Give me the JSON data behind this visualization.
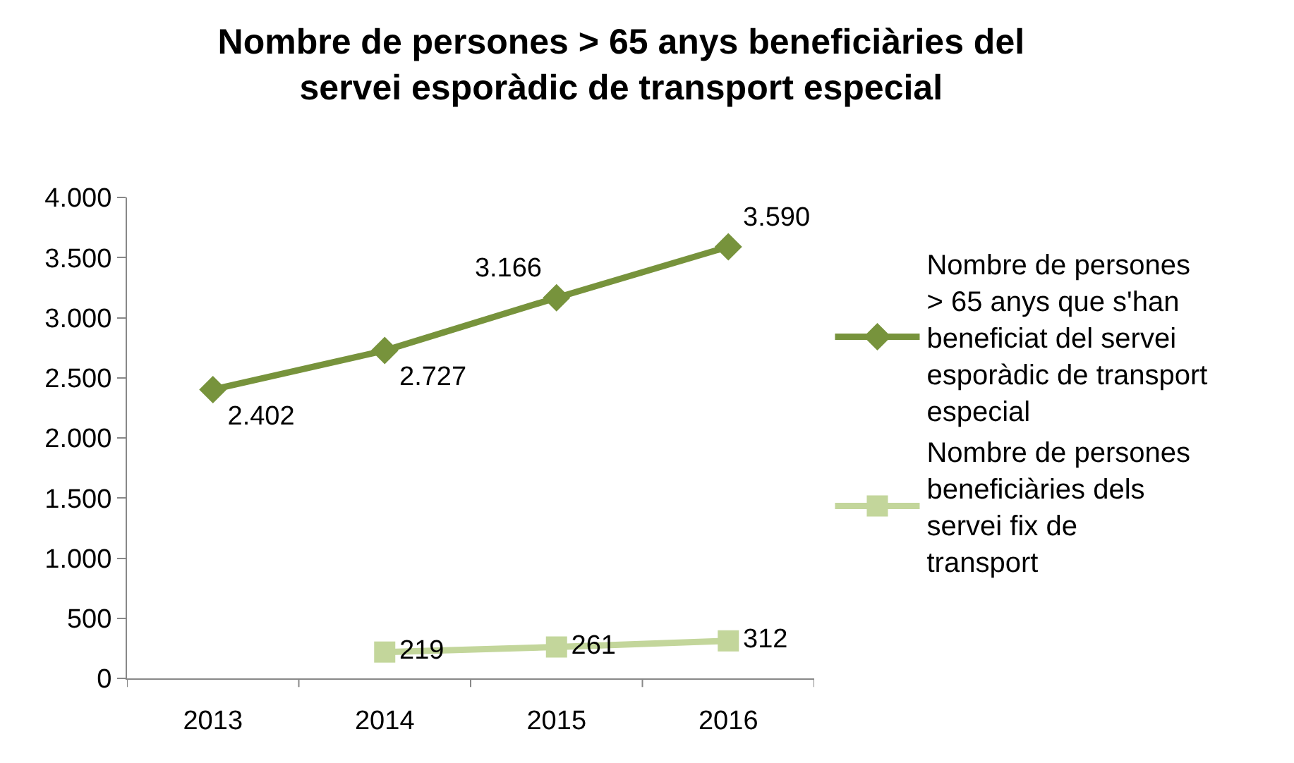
{
  "chart_data": {
    "type": "line",
    "title": "Nombre de persones > 65 anys beneficiàries del servei esporàdic de transport especial",
    "categories": [
      "2013",
      "2014",
      "2015",
      "2016"
    ],
    "series": [
      {
        "name": "Nombre de persones > 65 anys que s'han beneficiat del servei esporàdic de transport especial",
        "color": "#77933c",
        "marker": "diamond",
        "values": [
          2402,
          2727,
          3166,
          3590
        ],
        "value_labels": [
          "2.402",
          "2.727",
          "3.166",
          "3.590"
        ]
      },
      {
        "name": "Nombre de persones beneficiàries dels servei fix de transport",
        "color": "#c3d69b",
        "marker": "square",
        "values": [
          null,
          219,
          261,
          312
        ],
        "value_labels": [
          null,
          "219",
          "261",
          "312"
        ]
      }
    ],
    "ylim": [
      0,
      4000
    ],
    "yticks": [
      0,
      {
        "value": 500,
        "label": "500"
      },
      {
        "value": 1000,
        "label": "1.000"
      },
      {
        "value": 1500,
        "label": "1.500"
      },
      {
        "value": 2000,
        "label": "2.000"
      },
      {
        "value": 2500,
        "label": "2.500"
      },
      {
        "value": 3000,
        "label": "3.000"
      },
      {
        "value": 3500,
        "label": "3.500"
      },
      {
        "value": 4000,
        "label": "4.000"
      }
    ],
    "grid": false,
    "legend": "right",
    "line_style": "solid"
  }
}
